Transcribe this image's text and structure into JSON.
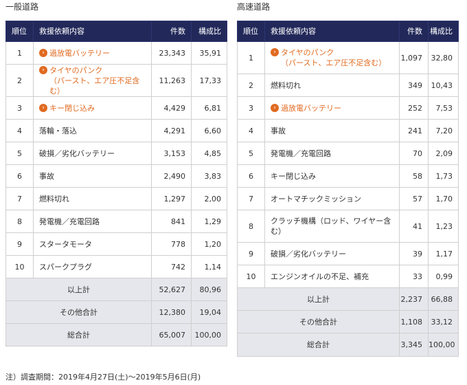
{
  "general": {
    "title": "一般道路",
    "headers": {
      "rank": "順位",
      "content": "救援依頼内容",
      "count": "件数",
      "ratio": "構成比"
    },
    "rows": [
      {
        "rank": "1",
        "lines": [
          "過放電バッテリー"
        ],
        "link": true,
        "count": "23,343",
        "ratio": "35,91"
      },
      {
        "rank": "2",
        "lines": [
          "タイヤのパンク",
          "（パースト、エア圧不足含む）"
        ],
        "link": true,
        "count": "11,263",
        "ratio": "17,33"
      },
      {
        "rank": "3",
        "lines": [
          "キー閉じ込み"
        ],
        "link": true,
        "count": "4,429",
        "ratio": "6,81"
      },
      {
        "rank": "4",
        "lines": [
          "落輪・落込"
        ],
        "link": false,
        "count": "4,291",
        "ratio": "6,60"
      },
      {
        "rank": "5",
        "lines": [
          "破損／劣化バッテリー"
        ],
        "link": false,
        "count": "3,153",
        "ratio": "4,85"
      },
      {
        "rank": "6",
        "lines": [
          "事故"
        ],
        "link": false,
        "count": "2,490",
        "ratio": "3,83"
      },
      {
        "rank": "7",
        "lines": [
          "燃料切れ"
        ],
        "link": false,
        "count": "1,297",
        "ratio": "2,00"
      },
      {
        "rank": "8",
        "lines": [
          "発電機／充電回路"
        ],
        "link": false,
        "count": "841",
        "ratio": "1,29"
      },
      {
        "rank": "9",
        "lines": [
          "スタータモータ"
        ],
        "link": false,
        "count": "778",
        "ratio": "1,20"
      },
      {
        "rank": "10",
        "lines": [
          "スパークプラグ"
        ],
        "link": false,
        "count": "742",
        "ratio": "1,14"
      }
    ],
    "totals": [
      {
        "label": "以上計",
        "count": "52,627",
        "ratio": "80,96"
      },
      {
        "label": "その他合計",
        "count": "12,380",
        "ratio": "19,04"
      },
      {
        "label": "総合計",
        "count": "65,007",
        "ratio": "100,00"
      }
    ]
  },
  "highway": {
    "title": "高速道路",
    "headers": {
      "rank": "順位",
      "content": "救援依頼内容",
      "count": "件数",
      "ratio": "構成比"
    },
    "rows": [
      {
        "rank": "1",
        "lines": [
          "タイヤのパンク",
          "（パースト、エア圧不足含む）"
        ],
        "link": true,
        "count": "1,097",
        "ratio": "32,80"
      },
      {
        "rank": "2",
        "lines": [
          "燃料切れ"
        ],
        "link": false,
        "count": "349",
        "ratio": "10,43"
      },
      {
        "rank": "3",
        "lines": [
          "過放電バッテリー"
        ],
        "link": true,
        "count": "252",
        "ratio": "7,53"
      },
      {
        "rank": "4",
        "lines": [
          "事故"
        ],
        "link": false,
        "count": "241",
        "ratio": "7,20"
      },
      {
        "rank": "5",
        "lines": [
          "発電機／充電回路"
        ],
        "link": false,
        "count": "70",
        "ratio": "2,09"
      },
      {
        "rank": "6",
        "lines": [
          "キー閉じ込み"
        ],
        "link": false,
        "count": "58",
        "ratio": "1,73"
      },
      {
        "rank": "7",
        "lines": [
          "オートマチックミッション"
        ],
        "link": false,
        "count": "57",
        "ratio": "1,70"
      },
      {
        "rank": "8",
        "lines": [
          "クラッチ機構（ロッド、ワイヤー含",
          "む）"
        ],
        "link": false,
        "count": "41",
        "ratio": "1,23"
      },
      {
        "rank": "9",
        "lines": [
          "破損／劣化バッテリー"
        ],
        "link": false,
        "count": "39",
        "ratio": "1,17"
      },
      {
        "rank": "10",
        "lines": [
          "エンジンオイルの不足、補充"
        ],
        "link": false,
        "count": "33",
        "ratio": "0,99"
      }
    ],
    "totals": [
      {
        "label": "以上計",
        "count": "2,237",
        "ratio": "66,88"
      },
      {
        "label": "その他合計",
        "count": "1,108",
        "ratio": "33,12"
      },
      {
        "label": "総合計",
        "count": "3,345",
        "ratio": "100,00"
      }
    ]
  },
  "note": "注）調査期間：2019年4月27日(土)〜2019年5月6日(月)",
  "colors": {
    "header_bg": "#22295a",
    "link": "#e06a20",
    "total_bg": "#e6e7ec"
  },
  "icons": {
    "link_arrow": "chevron-right-circle-icon"
  }
}
